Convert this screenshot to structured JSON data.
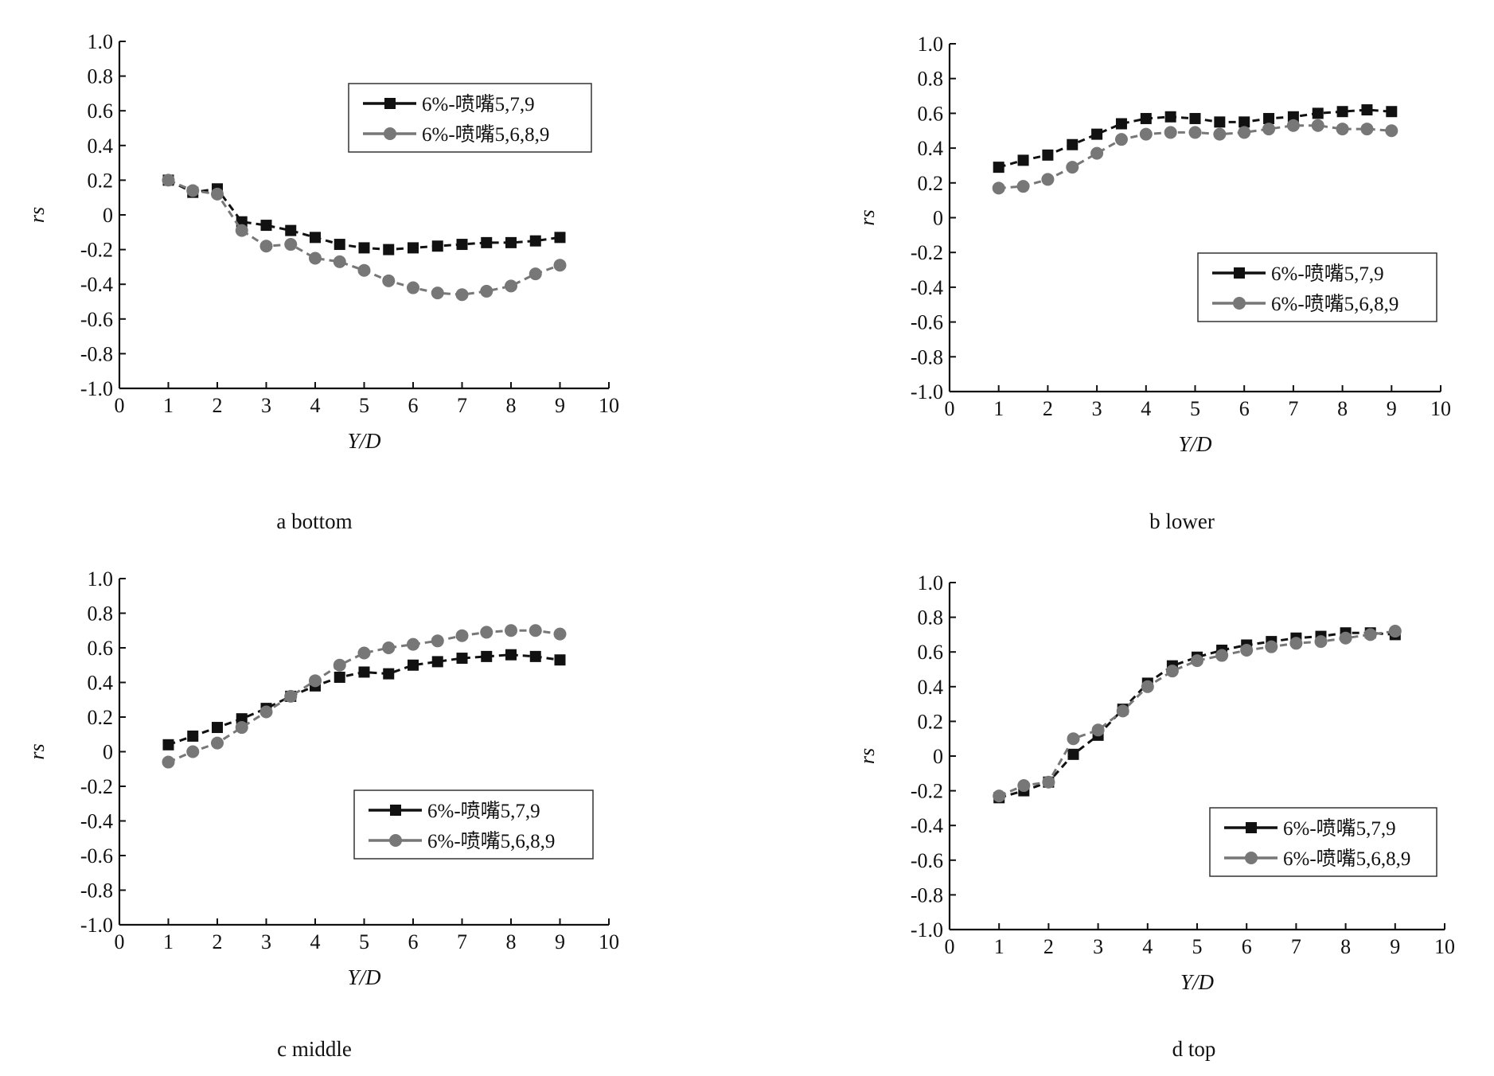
{
  "chart_data": [
    {
      "id": "a",
      "type": "line",
      "caption": "a bottom",
      "xlabel": "Y/D",
      "ylabel": "rs",
      "xlim": [
        0,
        10
      ],
      "ylim": [
        -1.0,
        1.0
      ],
      "xticks": [
        "0",
        "1",
        "2",
        "3",
        "4",
        "5",
        "6",
        "7",
        "8",
        "9",
        "10"
      ],
      "yticks": [
        "1.0",
        "0.8",
        "0.6",
        "0.4",
        "0.2",
        "0",
        "-0.2",
        "-0.4",
        "-0.6",
        "-0.8",
        "-1.0"
      ],
      "grid": false,
      "legend_position": "top-right",
      "x": [
        1,
        1.5,
        2,
        2.5,
        3,
        3.5,
        4,
        4.5,
        5,
        5.5,
        6,
        6.5,
        7,
        7.5,
        8,
        8.5,
        9
      ],
      "series": [
        {
          "name": "6%-喷嘴5,7,9",
          "marker": "square",
          "color": "#111111",
          "values": [
            0.2,
            0.13,
            0.15,
            -0.04,
            -0.06,
            -0.09,
            -0.13,
            -0.17,
            -0.19,
            -0.2,
            -0.19,
            -0.18,
            -0.17,
            -0.16,
            -0.16,
            -0.15,
            -0.13
          ]
        },
        {
          "name": "6%-喷嘴5,6,8,9",
          "marker": "circle",
          "color": "#777777",
          "values": [
            0.2,
            0.14,
            0.12,
            -0.09,
            -0.18,
            -0.17,
            -0.25,
            -0.27,
            -0.32,
            -0.38,
            -0.42,
            -0.45,
            -0.46,
            -0.44,
            -0.41,
            -0.34,
            -0.29
          ]
        }
      ]
    },
    {
      "id": "b",
      "type": "line",
      "caption": "b lower",
      "xlabel": "Y/D",
      "ylabel": "rs",
      "xlim": [
        0,
        10
      ],
      "ylim": [
        -1.0,
        1.0
      ],
      "xticks": [
        "0",
        "1",
        "2",
        "3",
        "4",
        "5",
        "6",
        "7",
        "8",
        "9",
        "10"
      ],
      "yticks": [
        "1.0",
        "0.8",
        "0.6",
        "0.4",
        "0.2",
        "0",
        "-0.2",
        "-0.4",
        "-0.6",
        "-0.8",
        "-1.0"
      ],
      "grid": false,
      "legend_position": "middle-right",
      "x": [
        1,
        1.5,
        2,
        2.5,
        3,
        3.5,
        4,
        4.5,
        5,
        5.5,
        6,
        6.5,
        7,
        7.5,
        8,
        8.5,
        9
      ],
      "series": [
        {
          "name": "6%-喷嘴5,7,9",
          "marker": "square",
          "color": "#111111",
          "values": [
            0.29,
            0.33,
            0.36,
            0.42,
            0.48,
            0.54,
            0.57,
            0.58,
            0.57,
            0.55,
            0.55,
            0.57,
            0.58,
            0.6,
            0.61,
            0.62,
            0.61
          ]
        },
        {
          "name": "6%-喷嘴5,6,8,9",
          "marker": "circle",
          "color": "#777777",
          "values": [
            0.17,
            0.18,
            0.22,
            0.29,
            0.37,
            0.45,
            0.48,
            0.49,
            0.49,
            0.48,
            0.49,
            0.51,
            0.53,
            0.53,
            0.51,
            0.51,
            0.5
          ]
        }
      ]
    },
    {
      "id": "c",
      "type": "line",
      "caption": "c middle",
      "xlabel": "Y/D",
      "ylabel": "rs",
      "xlim": [
        0,
        10
      ],
      "ylim": [
        -1.0,
        1.0
      ],
      "xticks": [
        "0",
        "1",
        "2",
        "3",
        "4",
        "5",
        "6",
        "7",
        "8",
        "9",
        "10"
      ],
      "yticks": [
        "1.0",
        "0.8",
        "0.6",
        "0.4",
        "0.2",
        "0",
        "-0.2",
        "-0.4",
        "-0.6",
        "-0.8",
        "-1.0"
      ],
      "grid": false,
      "legend_position": "lower-right",
      "x": [
        1,
        1.5,
        2,
        2.5,
        3,
        3.5,
        4,
        4.5,
        5,
        5.5,
        6,
        6.5,
        7,
        7.5,
        8,
        8.5,
        9
      ],
      "series": [
        {
          "name": "6%-喷嘴5,7,9",
          "marker": "square",
          "color": "#111111",
          "values": [
            0.04,
            0.09,
            0.14,
            0.19,
            0.25,
            0.32,
            0.38,
            0.43,
            0.46,
            0.45,
            0.5,
            0.52,
            0.54,
            0.55,
            0.56,
            0.55,
            0.53
          ]
        },
        {
          "name": "6%-喷嘴5,6,8,9",
          "marker": "circle",
          "color": "#777777",
          "values": [
            -0.06,
            0.0,
            0.05,
            0.14,
            0.23,
            0.32,
            0.41,
            0.5,
            0.57,
            0.6,
            0.62,
            0.64,
            0.67,
            0.69,
            0.7,
            0.7,
            0.68
          ]
        }
      ]
    },
    {
      "id": "d",
      "type": "line",
      "caption": "d top",
      "xlabel": "Y/D",
      "ylabel": "rs",
      "xlim": [
        0,
        10
      ],
      "ylim": [
        -1.0,
        1.0
      ],
      "xticks": [
        "0",
        "1",
        "2",
        "3",
        "4",
        "5",
        "6",
        "7",
        "8",
        "9",
        "10"
      ],
      "yticks": [
        "1.0",
        "0.8",
        "0.6",
        "0.4",
        "0.2",
        "0",
        "-0.2",
        "-0.4",
        "-0.6",
        "-0.8",
        "-1.0"
      ],
      "grid": false,
      "legend_position": "lower-right",
      "x": [
        1,
        1.5,
        2,
        2.5,
        3,
        3.5,
        4,
        4.5,
        5,
        5.5,
        6,
        6.5,
        7,
        7.5,
        8,
        8.5,
        9
      ],
      "series": [
        {
          "name": "6%-喷嘴5,7,9",
          "marker": "square",
          "color": "#111111",
          "values": [
            -0.24,
            -0.2,
            -0.15,
            0.01,
            0.12,
            0.27,
            0.42,
            0.52,
            0.57,
            0.61,
            0.64,
            0.66,
            0.68,
            0.69,
            0.71,
            0.71,
            0.7
          ]
        },
        {
          "name": "6%-喷嘴5,6,8,9",
          "marker": "circle",
          "color": "#777777",
          "values": [
            -0.23,
            -0.17,
            -0.15,
            0.1,
            0.15,
            0.26,
            0.4,
            0.49,
            0.55,
            0.58,
            0.61,
            0.63,
            0.65,
            0.66,
            0.68,
            0.7,
            0.72
          ]
        }
      ]
    }
  ]
}
